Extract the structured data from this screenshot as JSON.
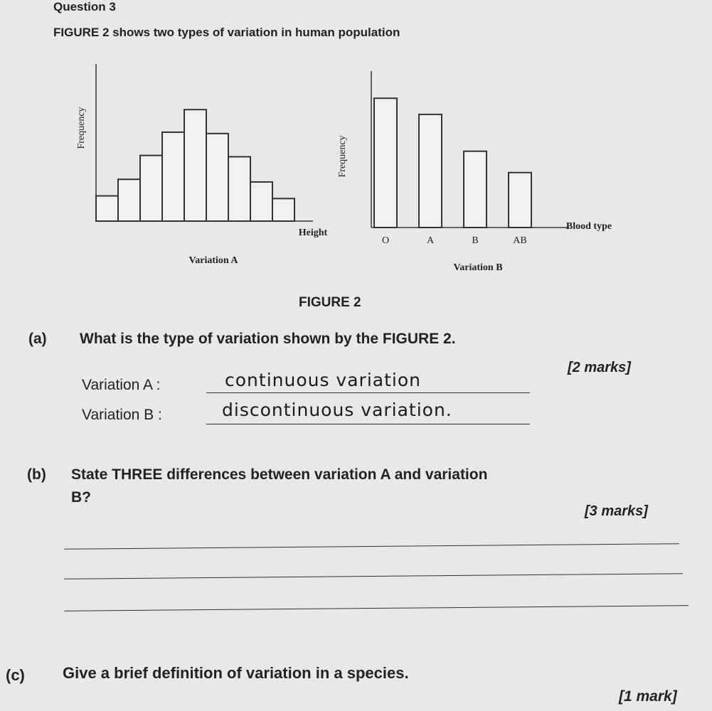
{
  "header": {
    "title": "Question 3",
    "intro": "FIGURE 2 shows two types of variation in human population"
  },
  "figure": {
    "caption": "FIGURE 2",
    "charts": [
      {
        "type": "bar",
        "title": "Variation A",
        "y_label": "Frequency",
        "x_label": "Height",
        "categories": [
          null,
          null,
          null,
          null,
          null,
          null,
          null,
          null,
          null
        ],
        "values": [
          38,
          63,
          99,
          134,
          168,
          132,
          97,
          59,
          34
        ],
        "ylim": [
          0,
          180
        ]
      },
      {
        "type": "bar",
        "title": "Variation B",
        "y_label": "Frequency",
        "x_label": "Blood type",
        "categories": [
          "O",
          "A",
          "B",
          "AB"
        ],
        "values": [
          200,
          175,
          118,
          85
        ],
        "ylim": [
          0,
          220
        ]
      }
    ]
  },
  "part_a": {
    "label": "(a)",
    "question": "What is the type of variation shown by the FIGURE 2.",
    "marks": "[2 marks]",
    "answers": [
      {
        "label": "Variation A :",
        "answer": "continuous variation"
      },
      {
        "label": "Variation B :",
        "answer": "discontinuous variation."
      }
    ]
  },
  "part_b": {
    "label": "(b)",
    "question": "State THREE differences between variation A and variation",
    "question_cont": "B?",
    "marks": "[3 marks]"
  },
  "part_c": {
    "label": "(c)",
    "question": "Give a brief definition of variation in a species.",
    "marks": "[1 mark]"
  }
}
